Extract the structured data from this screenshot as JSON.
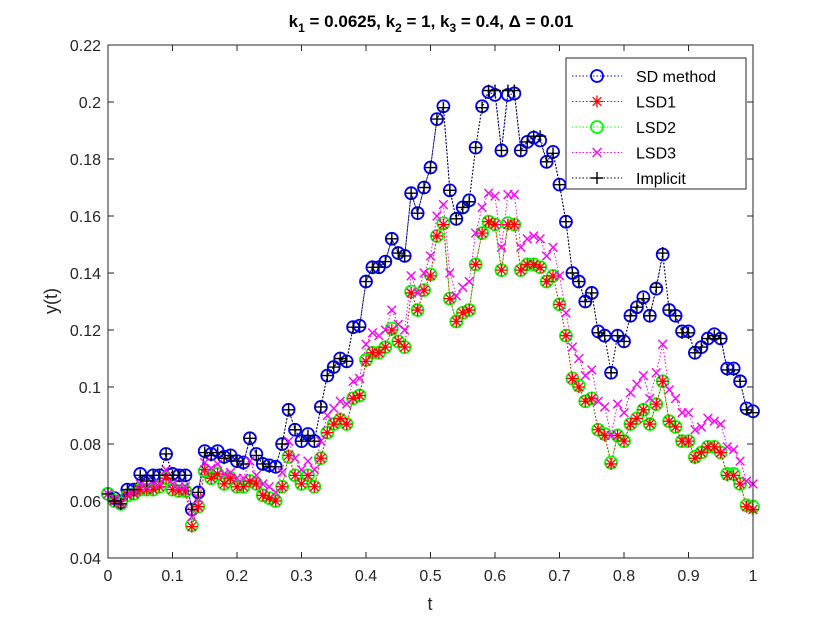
{
  "chart_data": {
    "type": "line",
    "title": {
      "pre": "k",
      "s1": "1",
      "t1": " = 0.0625, k",
      "s2": "2",
      "t2": " = 1, k",
      "s3": "3",
      "t3": " = 0.4, Δ = 0.01"
    },
    "xlabel": "t",
    "ylabel": "y(t)",
    "xlim": [
      0,
      1
    ],
    "ylim": [
      0.04,
      0.22
    ],
    "xticks": [
      0,
      0.1,
      0.2,
      0.3,
      0.4,
      0.5,
      0.6,
      0.7,
      0.8,
      0.9,
      1
    ],
    "yticks": [
      0.04,
      0.06,
      0.08,
      0.1,
      0.12,
      0.14,
      0.16,
      0.18,
      0.2,
      0.22
    ],
    "xtick_labels": [
      "0",
      "0.1",
      "0.2",
      "0.3",
      "0.4",
      "0.5",
      "0.6",
      "0.7",
      "0.8",
      "0.9",
      "1"
    ],
    "ytick_labels": [
      "0.04",
      "0.06",
      "0.08",
      "0.1",
      "0.12",
      "0.14",
      "0.16",
      "0.18",
      "0.2",
      "0.22"
    ],
    "legend_position": "top-right",
    "x": [
      0,
      0.01,
      0.02,
      0.03,
      0.04,
      0.05,
      0.06,
      0.07,
      0.08,
      0.09,
      0.1,
      0.11,
      0.12,
      0.13,
      0.14,
      0.15,
      0.16,
      0.17,
      0.18,
      0.19,
      0.2,
      0.21,
      0.22,
      0.23,
      0.24,
      0.25,
      0.26,
      0.27,
      0.28,
      0.29,
      0.3,
      0.31,
      0.32,
      0.33,
      0.34,
      0.35,
      0.36,
      0.37,
      0.38,
      0.39,
      0.4,
      0.41,
      0.42,
      0.43,
      0.44,
      0.45,
      0.46,
      0.47,
      0.48,
      0.49,
      0.5,
      0.51,
      0.52,
      0.53,
      0.54,
      0.55,
      0.56,
      0.57,
      0.58,
      0.59,
      0.6,
      0.61,
      0.62,
      0.63,
      0.64,
      0.65,
      0.66,
      0.67,
      0.68,
      0.69,
      0.7,
      0.71,
      0.72,
      0.73,
      0.74,
      0.75,
      0.76,
      0.77,
      0.78,
      0.79,
      0.8,
      0.81,
      0.82,
      0.83,
      0.84,
      0.85,
      0.86,
      0.87,
      0.88,
      0.89,
      0.9,
      0.91,
      0.92,
      0.93,
      0.94,
      0.95,
      0.96,
      0.97,
      0.98,
      0.99,
      1
    ],
    "series": [
      {
        "name": "SD method",
        "color": "#0000ff",
        "marker": "circle",
        "values": [
          0.0625,
          0.061,
          0.0595,
          0.064,
          0.064,
          0.0695,
          0.067,
          0.069,
          0.069,
          0.0765,
          0.0695,
          0.069,
          0.069,
          0.057,
          0.063,
          0.0775,
          0.0765,
          0.0775,
          0.0755,
          0.076,
          0.074,
          0.0735,
          0.082,
          0.0765,
          0.073,
          0.0725,
          0.072,
          0.08,
          0.092,
          0.085,
          0.081,
          0.0835,
          0.081,
          0.093,
          0.104,
          0.107,
          0.11,
          0.109,
          0.121,
          0.1215,
          0.137,
          0.142,
          0.142,
          0.144,
          0.152,
          0.147,
          0.146,
          0.168,
          0.161,
          0.17,
          0.177,
          0.194,
          0.1985,
          0.169,
          0.159,
          0.163,
          0.1655,
          0.184,
          0.1985,
          0.2035,
          0.2025,
          0.183,
          0.2025,
          0.203,
          0.183,
          0.186,
          0.1875,
          0.1865,
          0.179,
          0.1825,
          0.171,
          0.158,
          0.14,
          0.137,
          0.13,
          0.133,
          0.1195,
          0.118,
          0.105,
          0.118,
          0.116,
          0.125,
          0.128,
          0.1315,
          0.125,
          0.1345,
          0.1465,
          0.127,
          0.125,
          0.1195,
          0.1195,
          0.112,
          0.114,
          0.117,
          0.1185,
          0.117,
          0.1065,
          0.1065,
          0.102,
          0.0925,
          0.0915
        ]
      },
      {
        "name": "LSD1",
        "color": "#ff0000",
        "marker": "asterisk",
        "values": [
          0.0625,
          0.06,
          0.059,
          0.062,
          0.0625,
          0.064,
          0.064,
          0.064,
          0.065,
          0.068,
          0.064,
          0.0635,
          0.0635,
          0.051,
          0.058,
          0.071,
          0.068,
          0.0695,
          0.066,
          0.068,
          0.065,
          0.065,
          0.067,
          0.066,
          0.062,
          0.061,
          0.06,
          0.065,
          0.076,
          0.069,
          0.066,
          0.069,
          0.065,
          0.075,
          0.084,
          0.087,
          0.089,
          0.087,
          0.096,
          0.097,
          0.109,
          0.112,
          0.112,
          0.114,
          0.12,
          0.116,
          0.114,
          0.133,
          0.127,
          0.134,
          0.139,
          0.153,
          0.157,
          0.131,
          0.123,
          0.126,
          0.127,
          0.143,
          0.154,
          0.158,
          0.157,
          0.141,
          0.157,
          0.157,
          0.141,
          0.143,
          0.143,
          0.142,
          0.137,
          0.139,
          0.129,
          0.118,
          0.103,
          0.1,
          0.095,
          0.096,
          0.085,
          0.083,
          0.073,
          0.083,
          0.081,
          0.087,
          0.089,
          0.092,
          0.087,
          0.094,
          0.102,
          0.088,
          0.086,
          0.081,
          0.081,
          0.075,
          0.077,
          0.079,
          0.079,
          0.077,
          0.069,
          0.069,
          0.066,
          0.058,
          0.057
        ]
      },
      {
        "name": "LSD2",
        "color": "#00ff00",
        "marker": "circle",
        "values": [
          0.0625,
          0.06,
          0.059,
          0.062,
          0.0625,
          0.064,
          0.064,
          0.064,
          0.065,
          0.068,
          0.064,
          0.0635,
          0.0635,
          0.0515,
          0.058,
          0.0705,
          0.068,
          0.0695,
          0.066,
          0.068,
          0.065,
          0.065,
          0.067,
          0.066,
          0.062,
          0.061,
          0.06,
          0.065,
          0.0755,
          0.069,
          0.066,
          0.069,
          0.065,
          0.075,
          0.084,
          0.087,
          0.0885,
          0.087,
          0.096,
          0.097,
          0.1095,
          0.112,
          0.112,
          0.114,
          0.1205,
          0.116,
          0.114,
          0.1335,
          0.127,
          0.134,
          0.1395,
          0.153,
          0.1575,
          0.131,
          0.123,
          0.126,
          0.127,
          0.143,
          0.154,
          0.158,
          0.157,
          0.141,
          0.1575,
          0.157,
          0.141,
          0.143,
          0.143,
          0.142,
          0.137,
          0.139,
          0.129,
          0.118,
          0.103,
          0.1005,
          0.095,
          0.096,
          0.085,
          0.0835,
          0.0735,
          0.083,
          0.081,
          0.087,
          0.089,
          0.092,
          0.087,
          0.094,
          0.102,
          0.088,
          0.086,
          0.081,
          0.081,
          0.0755,
          0.077,
          0.079,
          0.079,
          0.077,
          0.0695,
          0.0695,
          0.066,
          0.0585,
          0.058
        ]
      },
      {
        "name": "LSD3",
        "color": "#ff00ff",
        "marker": "x",
        "values": [
          0.0625,
          0.061,
          0.0595,
          0.0625,
          0.063,
          0.066,
          0.065,
          0.066,
          0.066,
          0.071,
          0.066,
          0.065,
          0.065,
          0.0545,
          0.061,
          0.0735,
          0.0715,
          0.073,
          0.0695,
          0.07,
          0.068,
          0.068,
          0.074,
          0.069,
          0.066,
          0.065,
          0.063,
          0.07,
          0.081,
          0.075,
          0.071,
          0.074,
          0.071,
          0.081,
          0.09,
          0.0925,
          0.095,
          0.094,
          0.102,
          0.103,
          0.115,
          0.119,
          0.118,
          0.12,
          0.127,
          0.122,
          0.12,
          0.139,
          0.133,
          0.14,
          0.146,
          0.16,
          0.164,
          0.14,
          0.132,
          0.135,
          0.137,
          0.154,
          0.163,
          0.168,
          0.167,
          0.149,
          0.1675,
          0.1675,
          0.149,
          0.152,
          0.153,
          0.152,
          0.146,
          0.149,
          0.139,
          0.126,
          0.114,
          0.11,
          0.104,
          0.106,
          0.095,
          0.093,
          0.083,
          0.094,
          0.091,
          0.098,
          0.101,
          0.104,
          0.096,
          0.105,
          0.115,
          0.099,
          0.096,
          0.091,
          0.091,
          0.085,
          0.086,
          0.089,
          0.088,
          0.087,
          0.079,
          0.078,
          0.074,
          0.067,
          0.066
        ]
      },
      {
        "name": "Implicit",
        "color": "#000000",
        "marker": "plus",
        "values": [
          0.0625,
          0.06,
          0.059,
          0.064,
          0.064,
          0.069,
          0.067,
          0.069,
          0.069,
          0.0765,
          0.069,
          0.069,
          0.069,
          0.057,
          0.063,
          0.077,
          0.076,
          0.077,
          0.075,
          0.076,
          0.074,
          0.073,
          0.082,
          0.076,
          0.073,
          0.072,
          0.072,
          0.08,
          0.092,
          0.085,
          0.081,
          0.083,
          0.081,
          0.093,
          0.104,
          0.107,
          0.11,
          0.109,
          0.121,
          0.121,
          0.137,
          0.142,
          0.142,
          0.144,
          0.152,
          0.147,
          0.146,
          0.168,
          0.161,
          0.17,
          0.177,
          0.194,
          0.198,
          0.169,
          0.159,
          0.163,
          0.165,
          0.184,
          0.198,
          0.204,
          0.204,
          0.183,
          0.204,
          0.204,
          0.183,
          0.186,
          0.188,
          0.188,
          0.179,
          0.182,
          0.171,
          0.158,
          0.14,
          0.137,
          0.13,
          0.133,
          0.119,
          0.118,
          0.105,
          0.118,
          0.116,
          0.125,
          0.128,
          0.131,
          0.125,
          0.135,
          0.147,
          0.127,
          0.125,
          0.119,
          0.119,
          0.112,
          0.114,
          0.117,
          0.118,
          0.117,
          0.106,
          0.106,
          0.102,
          0.092,
          0.091
        ]
      }
    ]
  }
}
